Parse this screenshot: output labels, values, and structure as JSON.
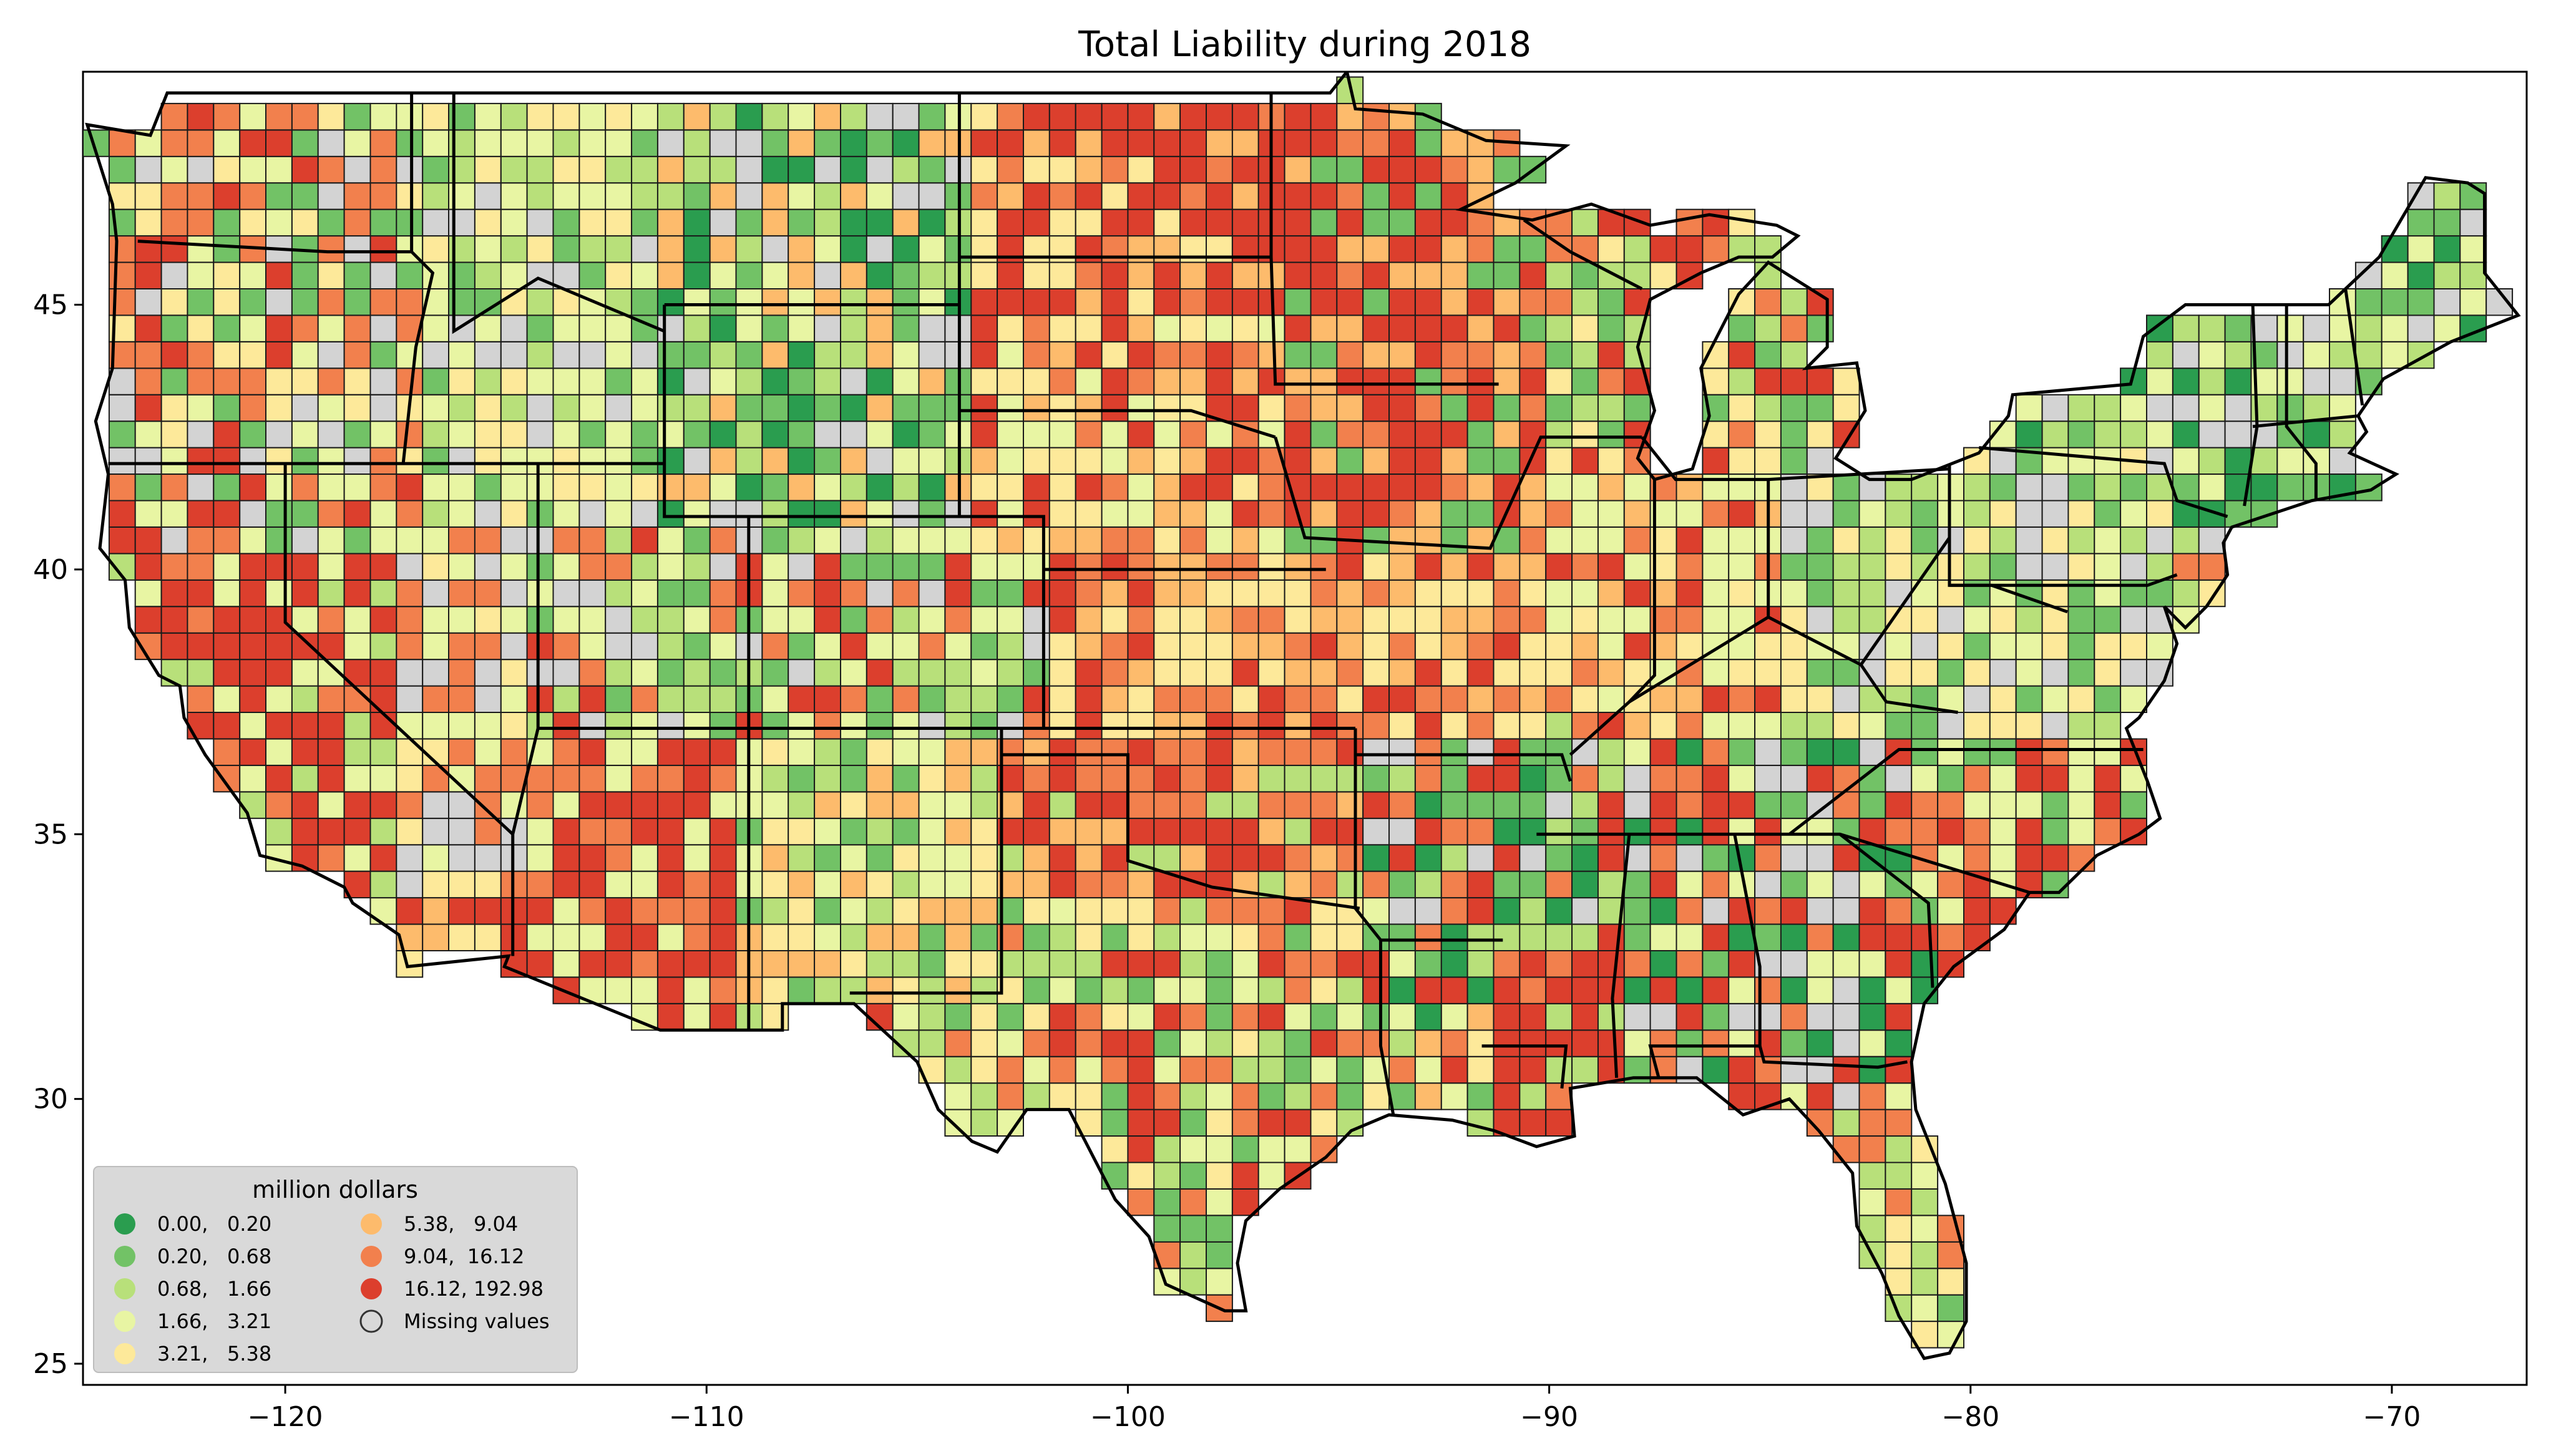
{
  "title": "Total Liability during 2018",
  "colors": {
    "class_0": "#2a9d4f",
    "class_1": "#72c266",
    "class_2": "#b8e07a",
    "class_3": "#e8f5a3",
    "class_4": "#fde99a",
    "class_5": "#fdbb6c",
    "class_6": "#f2804d",
    "class_7": "#dc3f2d",
    "missing": "#d3d3d3"
  },
  "legend": {
    "title": "million dollars",
    "items": [
      {
        "label": "0.00,   0.20",
        "color": "#2a9d4f"
      },
      {
        "label": "0.20,   0.68",
        "color": "#72c266"
      },
      {
        "label": "0.68,   1.66",
        "color": "#b8e07a"
      },
      {
        "label": "1.66,   3.21",
        "color": "#e8f5a3"
      },
      {
        "label": "3.21,   5.38",
        "color": "#fde99a"
      },
      {
        "label": "5.38,   9.04",
        "color": "#fdbb6c"
      },
      {
        "label": "9.04,  16.12",
        "color": "#f2804d"
      },
      {
        "label": "16.12, 192.98",
        "color": "#dc3f2d"
      },
      {
        "label": "Missing values",
        "color": "#d3d3d3"
      }
    ]
  },
  "axes": {
    "x_ticks": [
      -120,
      -110,
      -100,
      -90,
      -80,
      -70
    ],
    "x_tick_labels": [
      "−120",
      "−110",
      "−100",
      "−90",
      "−80",
      "−70"
    ],
    "y_ticks": [
      25,
      30,
      35,
      40,
      45
    ],
    "y_tick_labels": [
      "25",
      "30",
      "35",
      "40",
      "45"
    ],
    "xlim": [
      -124.8,
      -66.8
    ],
    "ylim": [
      24.6,
      49.4
    ]
  }
}
